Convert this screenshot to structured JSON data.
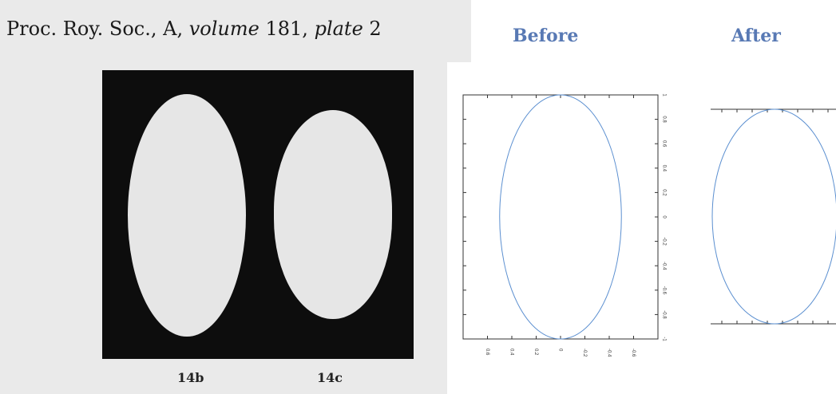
{
  "plate": {
    "caption_prefix": "Proc. Roy. Soc., A,",
    "caption_word": "volume",
    "caption_number": "181,",
    "caption_word2": "plate",
    "caption_plate": "2",
    "label_left": "14b",
    "label_right": "14c"
  },
  "headings": {
    "before": "Before",
    "after": "After"
  },
  "chart_data": [
    {
      "type": "line",
      "title": "",
      "xlabel": "",
      "ylabel": "",
      "curve": "ellipse",
      "x_semi_axis": 0.5,
      "y_semi_axis": 1.0,
      "xlim": [
        0.8,
        -0.8
      ],
      "ylim": [
        -1,
        1
      ],
      "xticks": [
        "0.6",
        "0.4",
        "0.2",
        "0",
        "-0.2",
        "-0.4",
        "-0.6"
      ],
      "yticks": [
        "1",
        "0.8",
        "0.6",
        "0.4",
        "0.2",
        "0",
        "-0.2",
        "-0.4",
        "-0.6",
        "-0.8",
        "-1"
      ],
      "line_color": "#5b8fd0",
      "axis_color": "#333333"
    },
    {
      "type": "line",
      "title": "",
      "curve": "ellipse",
      "x_semi_axis": 0.5,
      "y_semi_axis": 0.85,
      "cropped": true,
      "line_color": "#5b8fd0",
      "axis_color": "#333333"
    }
  ]
}
